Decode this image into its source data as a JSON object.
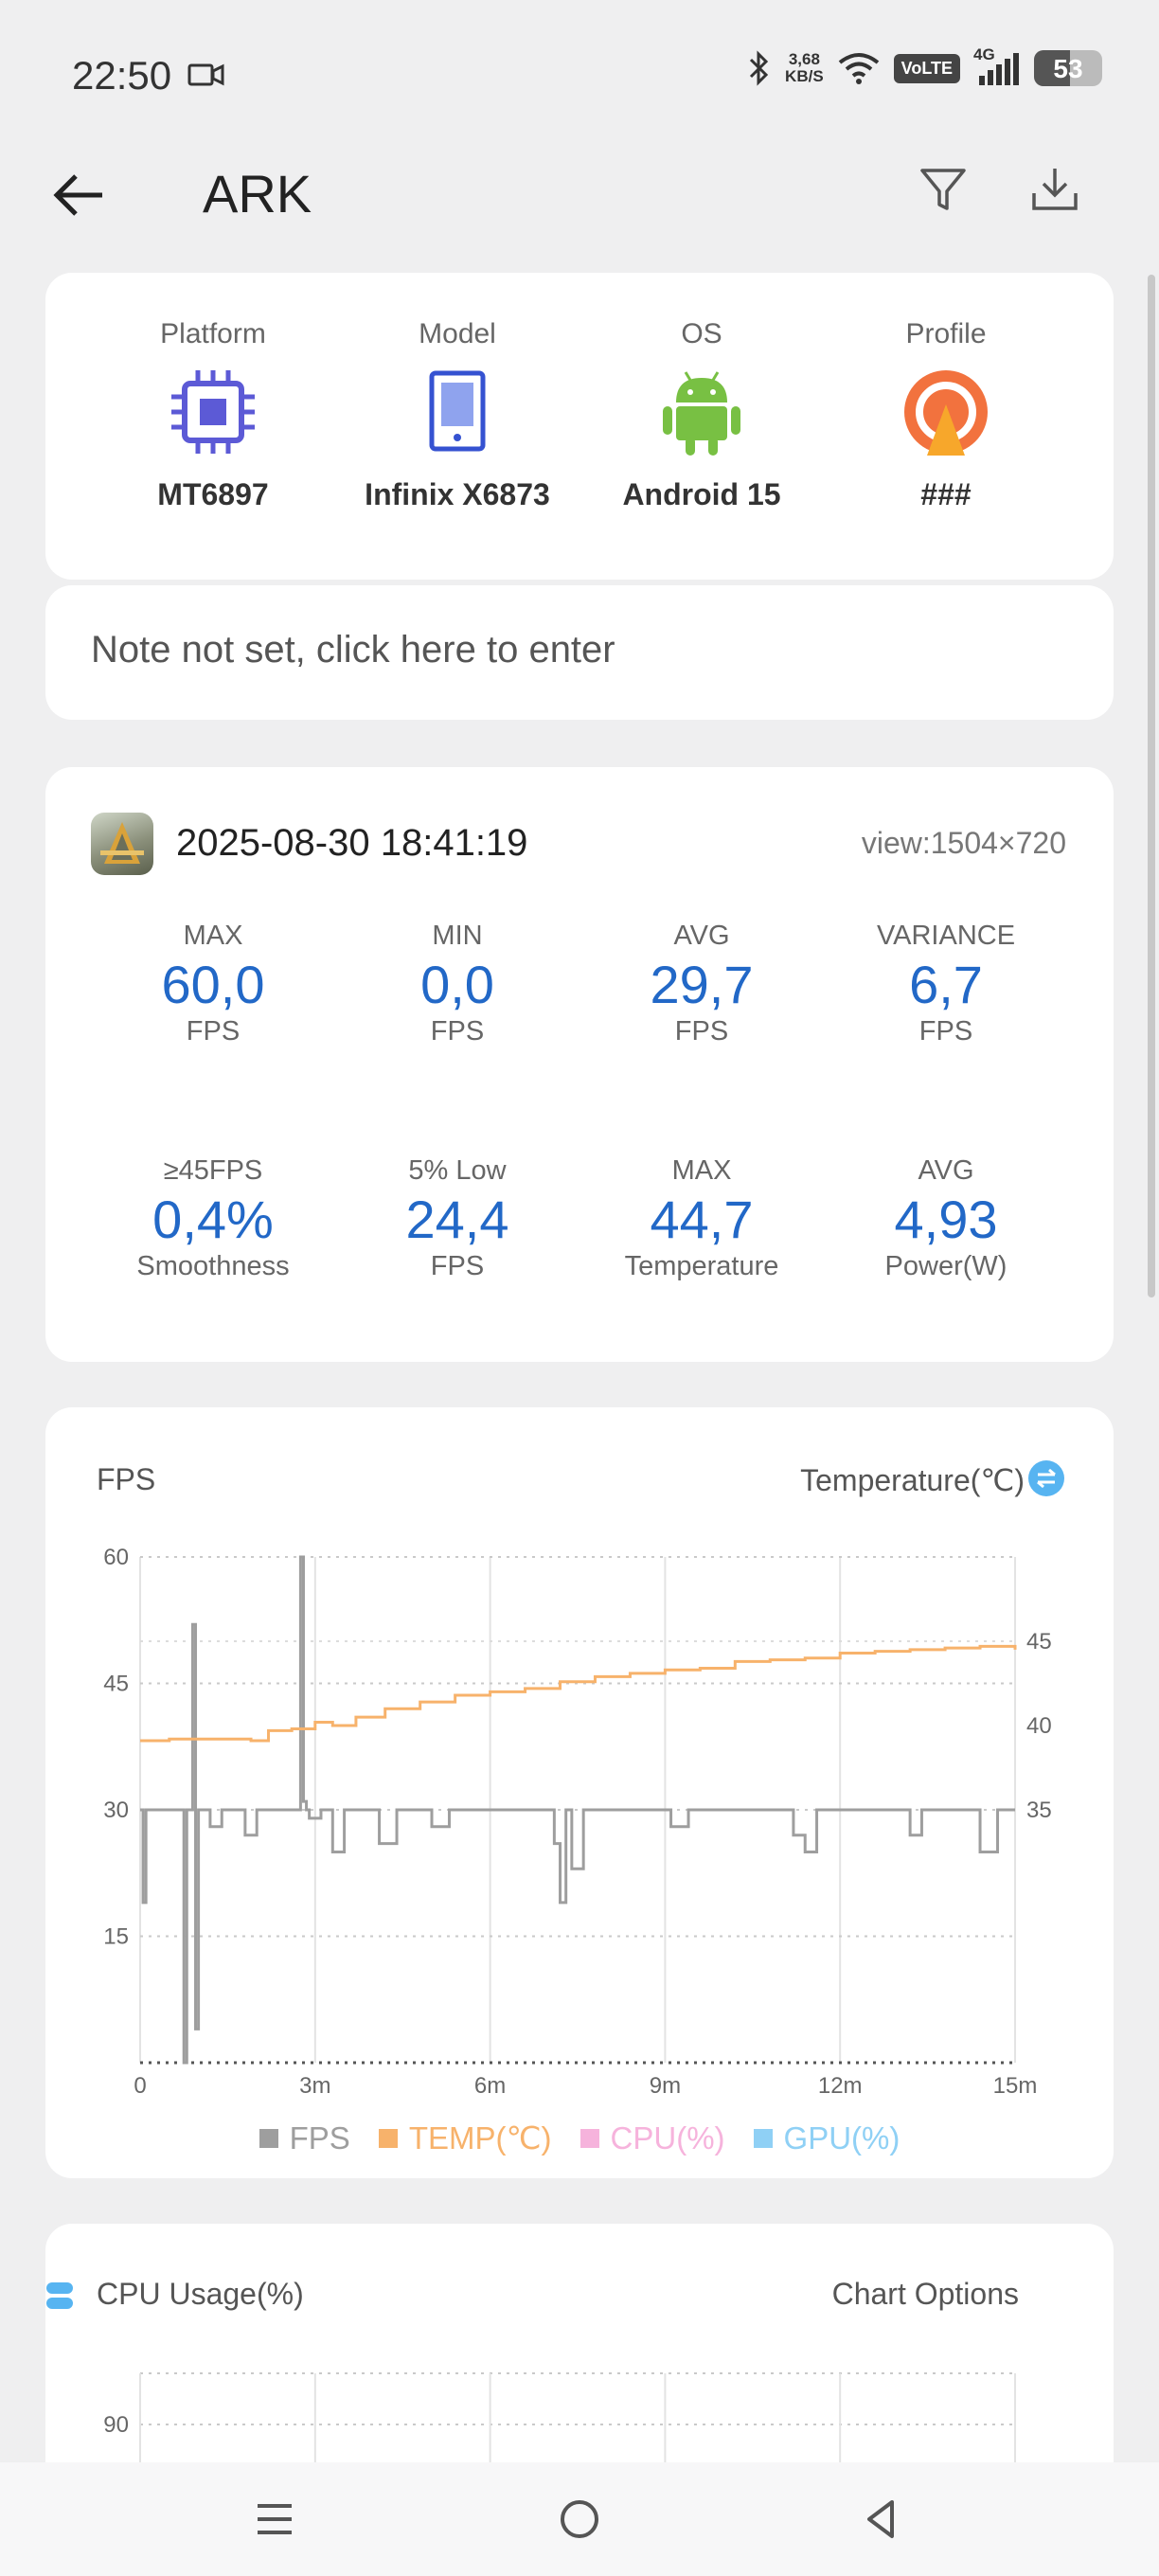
{
  "status": {
    "time": "22:50",
    "net_speed_value": "3,68",
    "net_speed_unit": "KB/S",
    "volte": "VoLTE",
    "network": "4G",
    "battery": "53"
  },
  "appbar": {
    "title": "ARK"
  },
  "device": [
    {
      "label": "Platform",
      "value": "MT6897",
      "icon": "chip-icon"
    },
    {
      "label": "Model",
      "value": "Infinix X6873",
      "icon": "phone-icon"
    },
    {
      "label": "OS",
      "value": "Android 15",
      "icon": "android-icon"
    },
    {
      "label": "Profile",
      "value": "###",
      "icon": "profile-icon"
    }
  ],
  "note": {
    "text": "Note not set, click here to enter"
  },
  "session": {
    "datetime": "2025-08-30 18:41:19",
    "view": "view:1504×720",
    "stats_row1": [
      {
        "title": "MAX",
        "value": "60,0",
        "unit": "FPS"
      },
      {
        "title": "MIN",
        "value": "0,0",
        "unit": "FPS"
      },
      {
        "title": "AVG",
        "value": "29,7",
        "unit": "FPS"
      },
      {
        "title": "VARIANCE",
        "value": "6,7",
        "unit": "FPS"
      }
    ],
    "stats_row2": [
      {
        "title": "≥45FPS",
        "value": "0,4%",
        "unit": "Smoothness"
      },
      {
        "title": "5% Low",
        "value": "24,4",
        "unit": "FPS"
      },
      {
        "title": "MAX",
        "value": "44,7",
        "unit": "Temperature"
      },
      {
        "title": "AVG",
        "value": "4,93",
        "unit": "Power(W)"
      }
    ]
  },
  "fps_chart": {
    "left_title": "FPS",
    "right_title": "Temperature(℃)",
    "legend": [
      {
        "label": "FPS",
        "color": "#9e9e9e"
      },
      {
        "label": "TEMP(℃)",
        "color": "#f7b26b"
      },
      {
        "label": "CPU(%)",
        "color": "#f6b3dc"
      },
      {
        "label": "GPU(%)",
        "color": "#8fd0f5"
      }
    ]
  },
  "chart_data": {
    "type": "line",
    "x_ticks": [
      "0",
      "3m",
      "6m",
      "9m",
      "12m",
      "15m"
    ],
    "x_range_min": [
      0,
      15
    ],
    "y_left": {
      "ticks": [
        60,
        45,
        30,
        15
      ],
      "range": [
        0,
        60
      ],
      "label": ""
    },
    "y_right": {
      "ticks": [
        45,
        40,
        35
      ],
      "range": [
        20,
        50
      ],
      "label": ""
    },
    "grid": true,
    "series": [
      {
        "name": "FPS",
        "axis": "left",
        "color": "#9e9e9e",
        "x": [
          0,
          0.05,
          0.1,
          0.25,
          0.4,
          0.6,
          0.7,
          0.75,
          0.8,
          0.85,
          0.9,
          0.95,
          1.0,
          1.05,
          1.1,
          1.2,
          1.4,
          1.6,
          1.8,
          2.0,
          2.2,
          2.5,
          2.7,
          2.75,
          2.8,
          2.85,
          2.9,
          3.1,
          3.3,
          3.5,
          3.8,
          4.1,
          4.4,
          4.7,
          5.0,
          5.3,
          5.6,
          5.9,
          6.2,
          6.5,
          6.9,
          7.1,
          7.2,
          7.3,
          7.4,
          7.6,
          7.9,
          8.2,
          8.5,
          8.8,
          9.1,
          9.4,
          9.7,
          10.0,
          10.3,
          10.6,
          10.9,
          11.2,
          11.4,
          11.6,
          11.8,
          12.0,
          12.3,
          12.6,
          12.9,
          13.2,
          13.4,
          13.6,
          13.8,
          14.1,
          14.4,
          14.7,
          15.0
        ],
        "y": [
          30,
          19,
          30,
          30,
          30,
          30,
          30,
          0,
          30,
          30,
          52,
          4,
          30,
          30,
          30,
          28,
          30,
          30,
          27,
          30,
          30,
          30,
          30,
          60,
          31,
          30,
          29,
          30,
          25,
          30,
          30,
          26,
          30,
          30,
          28,
          30,
          30,
          30,
          30,
          30,
          30,
          26,
          19,
          30,
          23,
          30,
          30,
          30,
          30,
          30,
          28,
          30,
          30,
          30,
          30,
          30,
          30,
          27,
          25,
          30,
          30,
          30,
          30,
          30,
          30,
          27,
          30,
          30,
          30,
          30,
          25,
          30,
          30
        ]
      },
      {
        "name": "TEMP(℃)",
        "axis": "right",
        "color": "#f7b26b",
        "x": [
          0,
          0.5,
          1.0,
          1.5,
          1.9,
          2.2,
          2.6,
          3.0,
          3.3,
          3.7,
          4.2,
          4.8,
          5.4,
          6.0,
          6.6,
          7.2,
          7.8,
          8.4,
          9.0,
          9.6,
          10.2,
          10.8,
          11.4,
          12.0,
          12.6,
          13.2,
          13.8,
          14.4,
          15.0
        ],
        "y": [
          39.1,
          39.2,
          39.2,
          39.2,
          39.1,
          39.7,
          39.8,
          40.2,
          40.0,
          40.5,
          41.0,
          41.4,
          41.8,
          42.0,
          42.2,
          42.6,
          42.9,
          43.1,
          43.3,
          43.4,
          43.8,
          43.9,
          44.0,
          44.3,
          44.4,
          44.5,
          44.6,
          44.7,
          44.5
        ]
      }
    ]
  },
  "cpu_chart": {
    "left_title": "CPU Usage(%)",
    "right_title": "Chart Options",
    "y_ticks": [
      90
    ]
  }
}
